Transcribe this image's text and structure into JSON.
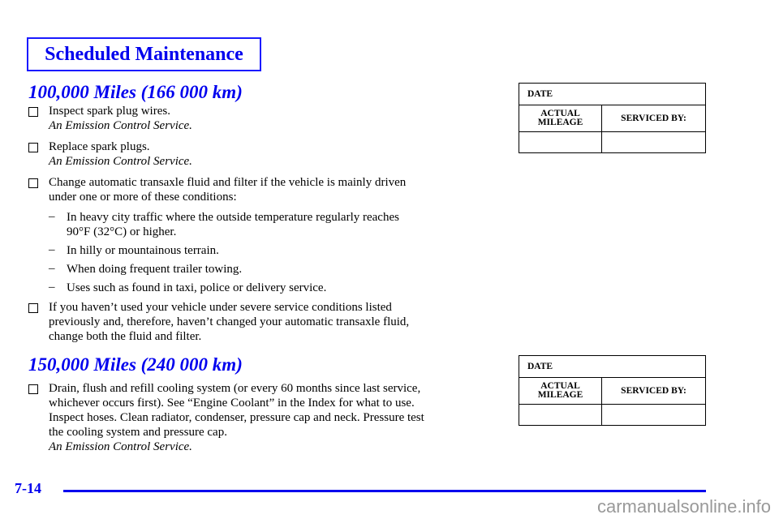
{
  "header": {
    "title": "Scheduled Maintenance"
  },
  "sections": [
    {
      "heading": "100,000 Miles (166 000 km)",
      "items": [
        {
          "lines": [
            "Inspect spark plug wires."
          ],
          "note": "An Emission Control Service."
        },
        {
          "lines": [
            "Replace spark plugs."
          ],
          "note": "An Emission Control Service."
        },
        {
          "lines": [
            "Change automatic transaxle fluid and filter if the vehicle is mainly driven",
            "under one or more of these conditions:"
          ],
          "subitems": [
            [
              "In heavy city traffic where the outside temperature regularly reaches",
              "90°F (32°C) or higher."
            ],
            [
              "In hilly or mountainous terrain."
            ],
            [
              "When doing frequent trailer towing."
            ],
            [
              "Uses such as found in taxi, police or delivery service."
            ]
          ]
        },
        {
          "lines": [
            "If you haven’t used your vehicle under severe service conditions listed",
            "previously and, therefore, haven’t changed your automatic transaxle fluid,",
            "change both the fluid and filter."
          ]
        }
      ]
    },
    {
      "heading": "150,000 Miles (240 000 km)",
      "items": [
        {
          "lines": [
            "Drain, flush and refill cooling system (or every 60 months since last service,",
            "whichever occurs first). See “Engine Coolant” in the Index for what to use.",
            "Inspect hoses. Clean radiator, condenser, pressure cap and neck. Pressure test",
            "the cooling system and pressure cap."
          ],
          "note": "An Emission Control Service."
        }
      ]
    }
  ],
  "record_table": {
    "date": "DATE",
    "actual_mileage": "ACTUAL MILEAGE",
    "serviced_by": "SERVICED BY:"
  },
  "footer": {
    "page_number": "7-14",
    "watermark": "carmanualsonline.info"
  },
  "colors": {
    "accent": "#0000ee"
  }
}
